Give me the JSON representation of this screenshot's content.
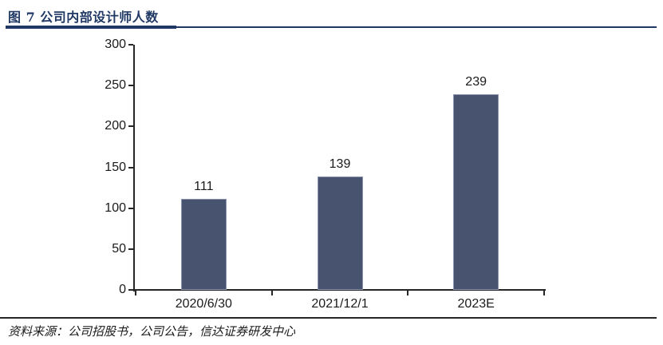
{
  "figure": {
    "title": "图 7 公司内部设计师人数",
    "source": "资料来源：公司招股书，公司公告，信达证券研发中心"
  },
  "chart_data": {
    "type": "bar",
    "title": "公司内部设计师人数",
    "categories": [
      "2020/6/30",
      "2021/12/1",
      "2023E"
    ],
    "values": [
      111,
      139,
      239
    ],
    "data_labels": [
      "111",
      "139",
      "239"
    ],
    "xlabel": "",
    "ylabel": "",
    "ylim": [
      0,
      300
    ],
    "yticks": [
      300,
      250,
      200,
      150,
      100,
      50,
      0
    ],
    "grid": false,
    "legend_position": "none",
    "bar_color": "#47536F",
    "bar_border_color": "#8A94AC",
    "axis_color": "#262626",
    "label_color": "#1A1A1A"
  },
  "colors": {
    "accent_navy": "#1F3864"
  }
}
